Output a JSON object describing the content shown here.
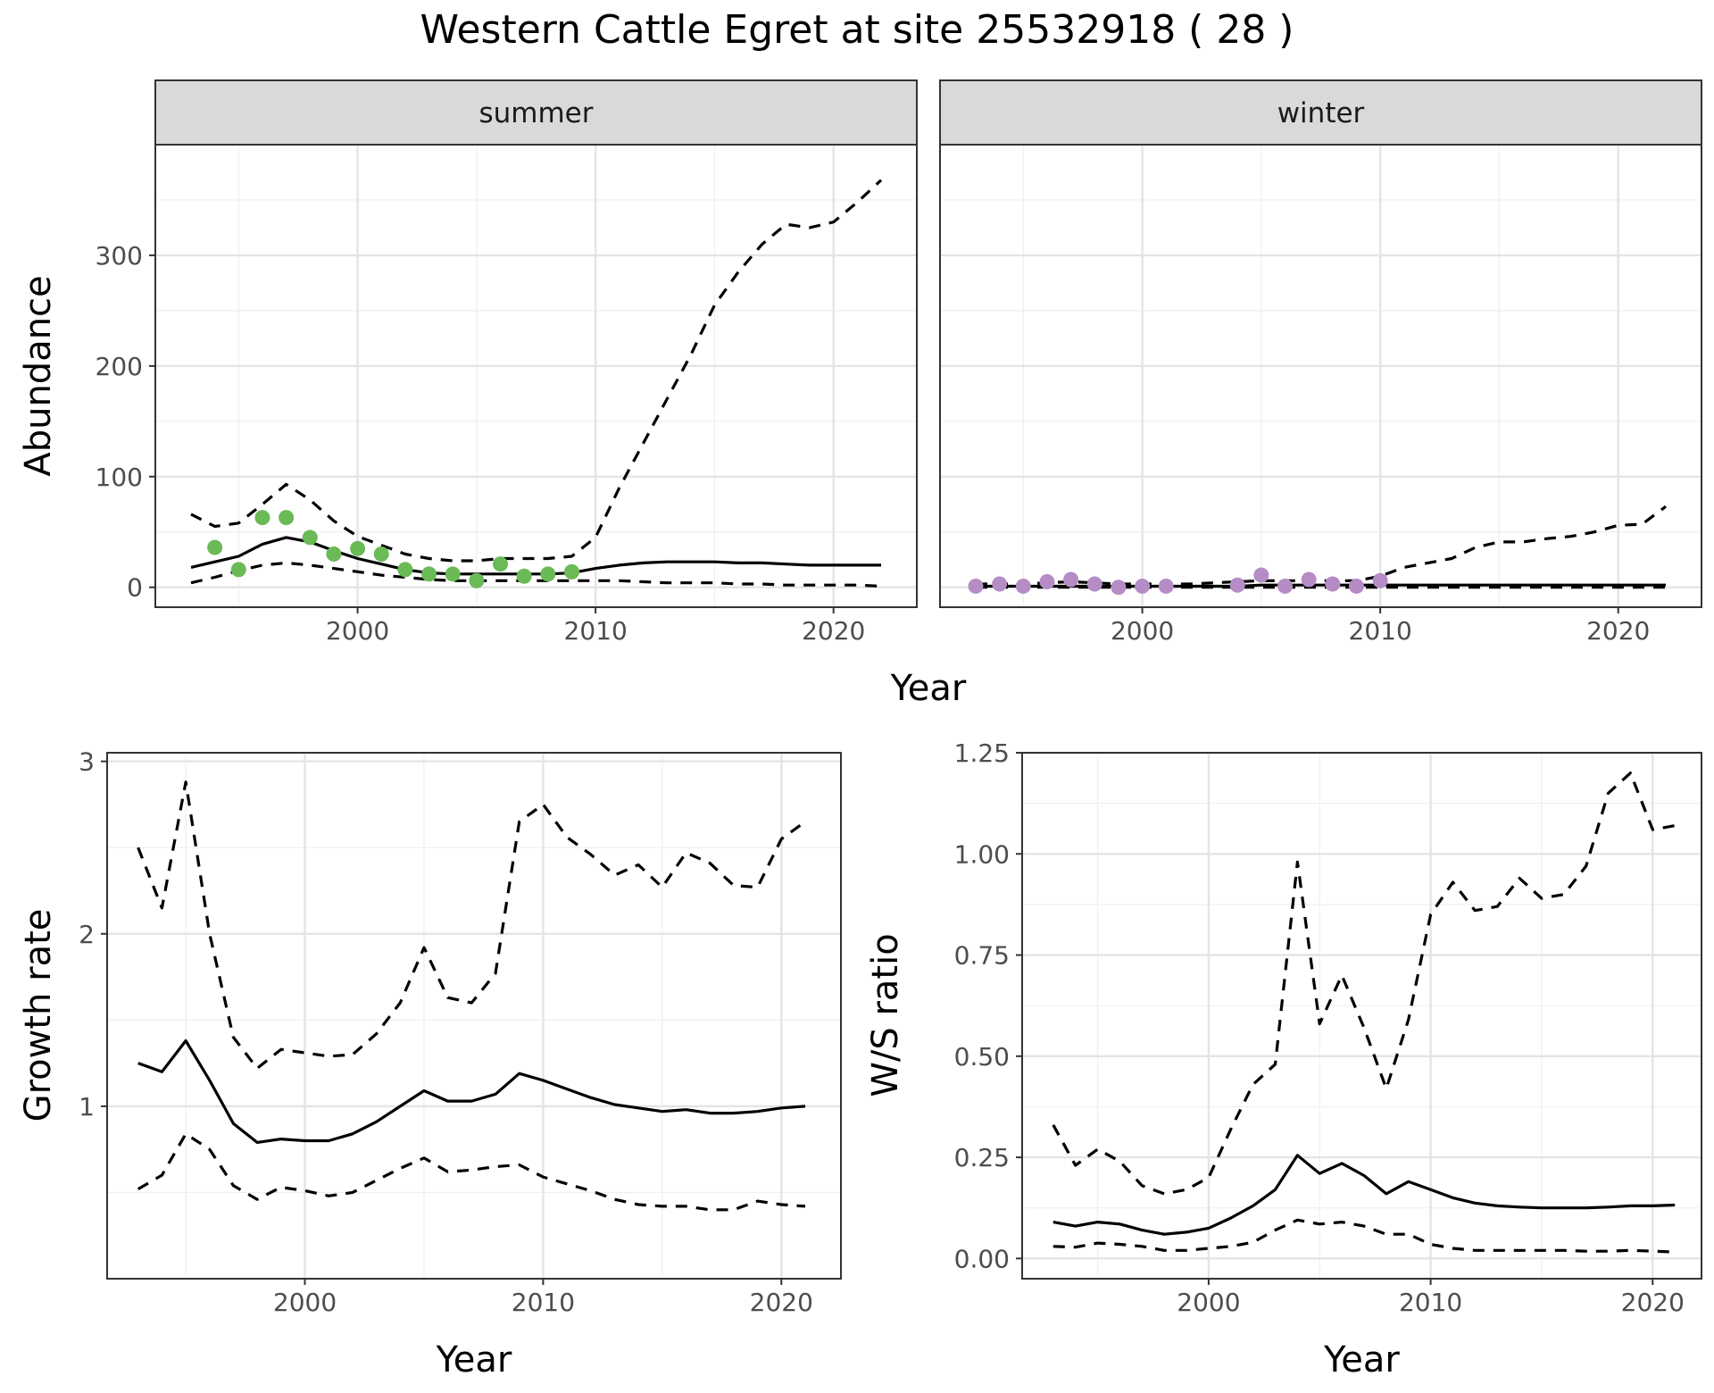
{
  "chart_data": [
    {
      "type": "line",
      "title": "Western Cattle Egret at site 25532918 ( 28 )",
      "ylabel": "Abundance",
      "xlabel": "Year",
      "ylim": [
        -18,
        400
      ],
      "xlim": [
        1991.5,
        2023.5
      ],
      "yticks": [
        0,
        100,
        200,
        300
      ],
      "xticks": [
        2000,
        2010,
        2020
      ],
      "grid": true,
      "panels": [
        {
          "strip": "summer",
          "point_color": "#6aba56",
          "series": [
            {
              "style": "solid",
              "x": [
                1993,
                1994,
                1995,
                1996,
                1997,
                1998,
                1999,
                2000,
                2001,
                2002,
                2003,
                2004,
                2005,
                2006,
                2007,
                2008,
                2009,
                2010,
                2011,
                2012,
                2013,
                2014,
                2015,
                2016,
                2017,
                2018,
                2019,
                2020,
                2021,
                2022
              ],
              "values": [
                18,
                23,
                28,
                39,
                45,
                41,
                33,
                26,
                21,
                16,
                13,
                12,
                12,
                12,
                12,
                12,
                13,
                17,
                20,
                22,
                23,
                23,
                23,
                22,
                22,
                21,
                20,
                20,
                20,
                20
              ]
            },
            {
              "style": "dashed",
              "x": [
                1993,
                1994,
                1995,
                1996,
                1997,
                1998,
                1999,
                2000,
                2001,
                2002,
                2003,
                2004,
                2005,
                2006,
                2007,
                2008,
                2009,
                2010,
                2011,
                2012,
                2013,
                2014,
                2015,
                2016,
                2017,
                2018,
                2019,
                2020,
                2021,
                2022
              ],
              "values": [
                66,
                55,
                58,
                75,
                93,
                79,
                60,
                46,
                38,
                30,
                26,
                24,
                24,
                26,
                26,
                26,
                28,
                45,
                90,
                130,
                170,
                210,
                255,
                285,
                310,
                328,
                325,
                330,
                348,
                368
              ]
            },
            {
              "style": "dashed",
              "x": [
                1993,
                1994,
                1995,
                1996,
                1997,
                1998,
                1999,
                2000,
                2001,
                2002,
                2003,
                2004,
                2005,
                2006,
                2007,
                2008,
                2009,
                2010,
                2011,
                2012,
                2013,
                2014,
                2015,
                2016,
                2017,
                2018,
                2019,
                2020,
                2021,
                2022
              ],
              "values": [
                4,
                9,
                15,
                20,
                22,
                20,
                17,
                14,
                11,
                9,
                7,
                6,
                6,
                6,
                6,
                6,
                6,
                6,
                6,
                5,
                4,
                4,
                4,
                3,
                3,
                2,
                2,
                2,
                2,
                1
              ]
            },
            {
              "style": "points",
              "x": [
                1994,
                1995,
                1996,
                1997,
                1998,
                1999,
                2000,
                2001,
                2002,
                2003,
                2004,
                2005,
                2006,
                2007,
                2008,
                2009
              ],
              "values": [
                36,
                16,
                63,
                63,
                45,
                30,
                35,
                30,
                16,
                12,
                12,
                6,
                21,
                10,
                12,
                14
              ]
            }
          ]
        },
        {
          "strip": "winter",
          "point_color": "#b58cc6",
          "series": [
            {
              "style": "solid",
              "x": [
                1993,
                1994,
                1995,
                1996,
                1997,
                1998,
                1999,
                2000,
                2001,
                2002,
                2003,
                2004,
                2005,
                2006,
                2007,
                2008,
                2009,
                2010,
                2011,
                2012,
                2013,
                2014,
                2015,
                2016,
                2017,
                2018,
                2019,
                2020,
                2021,
                2022
              ],
              "values": [
                1,
                1,
                1,
                1,
                1,
                1,
                1,
                1,
                1,
                1,
                1,
                1,
                2,
                2,
                2,
                2,
                2,
                2,
                2,
                2,
                2,
                2,
                2,
                2,
                2,
                2,
                2,
                2,
                2,
                2
              ]
            },
            {
              "style": "dashed",
              "x": [
                1993,
                1994,
                1995,
                1996,
                1997,
                1998,
                1999,
                2000,
                2001,
                2002,
                2003,
                2004,
                2005,
                2006,
                2007,
                2008,
                2009,
                2010,
                2011,
                2012,
                2013,
                2014,
                2015,
                2016,
                2017,
                2018,
                2019,
                2020,
                2021,
                2022
              ],
              "values": [
                3,
                3,
                3,
                4,
                5,
                4,
                3,
                3,
                3,
                3,
                4,
                5,
                6,
                6,
                6,
                6,
                6,
                10,
                18,
                22,
                26,
                36,
                41,
                41,
                44,
                46,
                50,
                56,
                57,
                73
              ]
            },
            {
              "style": "dashed",
              "x": [
                1993,
                1994,
                1995,
                1996,
                1997,
                1998,
                1999,
                2000,
                2001,
                2002,
                2003,
                2004,
                2005,
                2006,
                2007,
                2008,
                2009,
                2010,
                2011,
                2012,
                2013,
                2014,
                2015,
                2016,
                2017,
                2018,
                2019,
                2020,
                2021,
                2022
              ],
              "values": [
                0,
                0,
                0,
                0,
                0,
                0,
                0,
                0,
                0,
                0,
                0,
                0,
                0,
                0,
                0,
                0,
                0,
                0,
                0,
                0,
                0,
                0,
                0,
                0,
                0,
                0,
                0,
                0,
                0,
                0
              ]
            },
            {
              "style": "points",
              "x": [
                1993,
                1994,
                1995,
                1996,
                1997,
                1998,
                1999,
                2000,
                2001,
                2004,
                2005,
                2006,
                2007,
                2008,
                2009,
                2010
              ],
              "values": [
                1,
                3,
                1,
                5,
                7,
                3,
                0,
                1,
                1,
                2,
                11,
                1,
                7,
                3,
                1,
                6
              ]
            }
          ]
        }
      ]
    },
    {
      "type": "line",
      "ylabel": "Growth rate",
      "xlabel": "Year",
      "ylim": [
        0.0,
        3.05
      ],
      "xlim": [
        1991.7,
        2022.5
      ],
      "yticks": [
        1,
        2,
        3
      ],
      "xticks": [
        2000,
        2010,
        2020
      ],
      "grid": true,
      "series": [
        {
          "style": "solid",
          "x": [
            1993,
            1994,
            1995,
            1996,
            1997,
            1998,
            1999,
            2000,
            2001,
            2002,
            2003,
            2004,
            2005,
            2006,
            2007,
            2008,
            2009,
            2010,
            2011,
            2012,
            2013,
            2014,
            2015,
            2016,
            2017,
            2018,
            2019,
            2020,
            2021
          ],
          "values": [
            1.25,
            1.2,
            1.38,
            1.15,
            0.9,
            0.79,
            0.81,
            0.8,
            0.8,
            0.84,
            0.91,
            1.0,
            1.09,
            1.03,
            1.03,
            1.07,
            1.19,
            1.15,
            1.1,
            1.05,
            1.01,
            0.99,
            0.97,
            0.98,
            0.96,
            0.96,
            0.97,
            0.99,
            1.0
          ]
        },
        {
          "style": "dashed",
          "x": [
            1993,
            1994,
            1995,
            1996,
            1997,
            1998,
            1999,
            2000,
            2001,
            2002,
            2003,
            2004,
            2005,
            2006,
            2007,
            2008,
            2009,
            2010,
            2011,
            2012,
            2013,
            2014,
            2015,
            2016,
            2017,
            2018,
            2019,
            2020,
            2021
          ],
          "values": [
            2.5,
            2.15,
            2.88,
            2.0,
            1.4,
            1.22,
            1.33,
            1.31,
            1.29,
            1.3,
            1.42,
            1.6,
            1.92,
            1.63,
            1.6,
            1.77,
            2.65,
            2.75,
            2.56,
            2.46,
            2.34,
            2.4,
            2.27,
            2.47,
            2.41,
            2.28,
            2.27,
            2.55,
            2.65
          ]
        },
        {
          "style": "dashed",
          "x": [
            1993,
            1994,
            1995,
            1996,
            1997,
            1998,
            1999,
            2000,
            2001,
            2002,
            2003,
            2004,
            2005,
            2006,
            2007,
            2008,
            2009,
            2010,
            2011,
            2012,
            2013,
            2014,
            2015,
            2016,
            2017,
            2018,
            2019,
            2020,
            2021
          ],
          "values": [
            0.52,
            0.6,
            0.84,
            0.75,
            0.54,
            0.46,
            0.53,
            0.51,
            0.48,
            0.5,
            0.57,
            0.64,
            0.7,
            0.62,
            0.63,
            0.65,
            0.66,
            0.59,
            0.55,
            0.51,
            0.46,
            0.43,
            0.42,
            0.42,
            0.4,
            0.4,
            0.45,
            0.43,
            0.42
          ]
        }
      ]
    },
    {
      "type": "line",
      "ylabel": "W/S ratio",
      "xlabel": "Year",
      "ylim": [
        -0.05,
        1.25
      ],
      "xlim": [
        1991.6,
        2022.2
      ],
      "yticks": [
        0.0,
        0.25,
        0.5,
        0.75,
        1.0,
        1.25
      ],
      "ytick_labels": [
        "0.00",
        "0.25",
        "0.50",
        "0.75",
        "1.00",
        "1.25"
      ],
      "xticks": [
        2000,
        2010,
        2020
      ],
      "grid": true,
      "series": [
        {
          "style": "solid",
          "x": [
            1993,
            1994,
            1995,
            1996,
            1997,
            1998,
            1999,
            2000,
            2001,
            2002,
            2003,
            2004,
            2005,
            2006,
            2007,
            2008,
            2009,
            2010,
            2011,
            2012,
            2013,
            2014,
            2015,
            2016,
            2017,
            2018,
            2019,
            2020,
            2021
          ],
          "values": [
            0.09,
            0.08,
            0.09,
            0.085,
            0.07,
            0.06,
            0.065,
            0.075,
            0.1,
            0.13,
            0.17,
            0.255,
            0.21,
            0.235,
            0.205,
            0.16,
            0.19,
            0.17,
            0.15,
            0.137,
            0.13,
            0.127,
            0.125,
            0.125,
            0.125,
            0.127,
            0.13,
            0.13,
            0.132
          ]
        },
        {
          "style": "dashed",
          "x": [
            1993,
            1994,
            1995,
            1996,
            1997,
            1998,
            1999,
            2000,
            2001,
            2002,
            2003,
            2004,
            2005,
            2006,
            2007,
            2008,
            2009,
            2010,
            2011,
            2012,
            2013,
            2014,
            2015,
            2016,
            2017,
            2018,
            2019,
            2020,
            2021
          ],
          "values": [
            0.33,
            0.23,
            0.27,
            0.24,
            0.18,
            0.16,
            0.17,
            0.2,
            0.32,
            0.43,
            0.48,
            0.98,
            0.58,
            0.7,
            0.57,
            0.42,
            0.59,
            0.85,
            0.93,
            0.86,
            0.87,
            0.94,
            0.89,
            0.9,
            0.97,
            1.15,
            1.2,
            1.06,
            1.07
          ]
        },
        {
          "style": "dashed",
          "x": [
            1993,
            1994,
            1995,
            1996,
            1997,
            1998,
            1999,
            2000,
            2001,
            2002,
            2003,
            2004,
            2005,
            2006,
            2007,
            2008,
            2009,
            2010,
            2011,
            2012,
            2013,
            2014,
            2015,
            2016,
            2017,
            2018,
            2019,
            2020,
            2021
          ],
          "values": [
            0.03,
            0.028,
            0.038,
            0.035,
            0.03,
            0.02,
            0.02,
            0.025,
            0.03,
            0.04,
            0.07,
            0.095,
            0.085,
            0.09,
            0.08,
            0.06,
            0.06,
            0.035,
            0.025,
            0.02,
            0.02,
            0.02,
            0.02,
            0.02,
            0.018,
            0.018,
            0.02,
            0.018,
            0.016
          ]
        }
      ]
    }
  ]
}
